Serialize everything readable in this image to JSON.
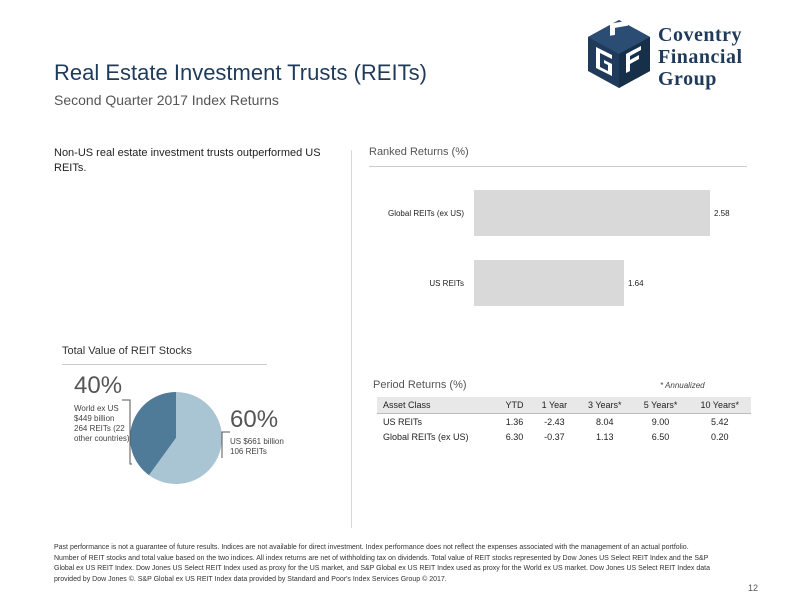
{
  "header": {
    "title": "Real Estate Investment Trusts (REITs)",
    "subtitle": "Second Quarter 2017 Index Returns"
  },
  "logo": {
    "lines": [
      "Coventry",
      "Financial",
      "Group"
    ],
    "color": "#1f3a5a"
  },
  "intro": {
    "text": "Non-US real estate investment trusts outperformed US REITs."
  },
  "ranked_returns": {
    "title": "Ranked Returns (%)"
  },
  "total_value": {
    "title": "Total Value of REIT Stocks",
    "world_pct": "40%",
    "world_note": "World ex US $449 billion 264 REITs (22 other countries)",
    "us_pct": "60%",
    "us_note": "US $661 billion 106 REITs"
  },
  "period_returns": {
    "title": "Period Returns (%)",
    "note": "* Annualized",
    "headers": [
      "Asset Class",
      "YTD",
      "1 Year",
      "3 Years*",
      "5 Years*",
      "10 Years*"
    ],
    "rows": [
      [
        "US REITs",
        "1.36",
        "-2.43",
        "8.04",
        "9.00",
        "5.42"
      ],
      [
        "Global REITs (ex US)",
        "6.30",
        "-0.37",
        "1.13",
        "6.50",
        "0.20"
      ]
    ]
  },
  "chart_data": [
    {
      "type": "bar",
      "orientation": "horizontal",
      "title": "Ranked Returns (%)",
      "categories": [
        "Global REITs (ex US)",
        "US REITs"
      ],
      "values": [
        2.58,
        1.64
      ],
      "value_labels": [
        "2.58",
        "1.64"
      ],
      "bar_color": "#d9d9d9",
      "xlim": [
        0,
        2.58
      ]
    },
    {
      "type": "pie",
      "title": "Total Value of REIT Stocks",
      "labels": [
        "World ex US",
        "US"
      ],
      "values": [
        40,
        60
      ],
      "colors": [
        "#4f7b98",
        "#a9c4d2"
      ]
    }
  ],
  "footer": {
    "disclaimer": "Past performance is not a guarantee of future results. Indices are not available for direct investment. Index performance does not reflect the expenses associated with the management of an actual portfolio. Number of REIT stocks and total value based on the two indices. All index returns are net of withholding tax on dividends. Total value of REIT stocks represented by Dow Jones US Select REIT Index and the S&P Global ex US REIT Index. Dow Jones US Select REIT Index used as proxy for the US market, and S&P Global ex US REIT Index used as proxy for the World ex US market. Dow Jones US Select REIT Index data provided by Dow Jones ©. S&P Global ex US REIT Index data provided by Standard and Poor's Index Services Group © 2017.",
    "page_number": "12"
  }
}
